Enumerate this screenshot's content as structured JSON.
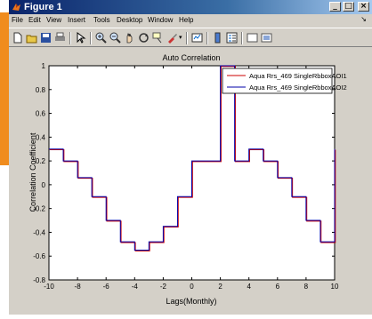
{
  "window": {
    "title": "Figure 1",
    "controls": [
      "_",
      "□",
      "×"
    ]
  },
  "menu": {
    "items": [
      "File",
      "Edit",
      "View",
      "Insert",
      "Tools",
      "Desktop",
      "Window",
      "Help"
    ]
  },
  "toolbar": {
    "buttons": [
      "new-figure-icon",
      "open-file-icon",
      "save-icon",
      "print-icon",
      "edit-plot-icon",
      "zoom-in-icon",
      "zoom-out-icon",
      "pan-icon",
      "rotate-3d-icon",
      "data-cursor-icon",
      "brush-icon",
      "link-plot-icon",
      "colorbar-icon",
      "legend-icon",
      "hide-plot-tools-icon",
      "show-plot-tools-icon"
    ]
  },
  "colors": {
    "series1": "#cc0000",
    "series2": "#0000aa",
    "title_bar": "#0a246a"
  },
  "chart_data": {
    "type": "line",
    "step": true,
    "title": "Auto Correlation",
    "xlabel": "Lags(Monthly)",
    "ylabel": "Correlation Coefficient",
    "xlim": [
      -10,
      10
    ],
    "ylim": [
      -0.8,
      1
    ],
    "xticks": [
      -10,
      -8,
      -6,
      -4,
      -2,
      0,
      2,
      4,
      6,
      8,
      10
    ],
    "yticks": [
      -0.8,
      -0.6,
      -0.4,
      -0.2,
      0,
      0.2,
      0.4,
      0.6,
      0.8,
      1
    ],
    "x": [
      -10,
      -9,
      -8,
      -7,
      -6,
      -5,
      -4,
      -3,
      -2,
      -1,
      0,
      1,
      2,
      3,
      4,
      5,
      6,
      7,
      8,
      9,
      10
    ],
    "series": [
      {
        "name": "Aqua Rrs_469 SingleRbboxAOI1",
        "color": "#cc0000",
        "values": [
          0.3,
          0.2,
          0.06,
          -0.1,
          -0.3,
          -0.48,
          -0.55,
          -0.48,
          -0.35,
          -0.1,
          0.2,
          0.2,
          1.0,
          0.2,
          0.3,
          0.2,
          0.06,
          -0.1,
          -0.3,
          -0.48,
          0.3
        ]
      },
      {
        "name": "Aqua Rrs_469 SingleRbboxAOI2",
        "color": "#0000aa",
        "values": [
          0.3,
          0.2,
          0.06,
          -0.1,
          -0.3,
          -0.48,
          -0.55,
          -0.48,
          -0.35,
          -0.1,
          0.2,
          0.2,
          1.0,
          0.2,
          0.3,
          0.2,
          0.06,
          -0.1,
          -0.3,
          -0.48,
          0.3
        ]
      }
    ],
    "legend_position": "top-right",
    "grid": false
  }
}
